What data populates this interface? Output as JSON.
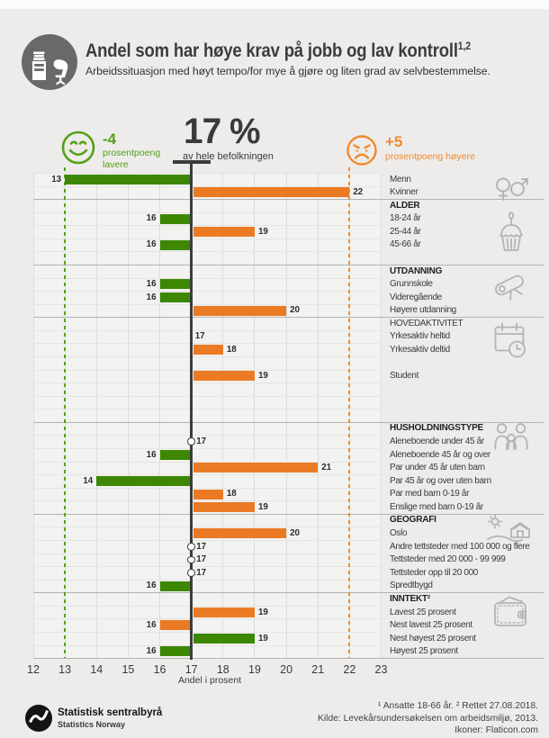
{
  "header": {
    "title": "Andel som har høye krav på jobb og lav kontroll",
    "title_sup": "1,2",
    "subtitle": "Arbeidssituasjon med høyt tempo/for mye å gjøre og liten grad av selvbestemmelse.",
    "icon": "worker-at-desk-icon"
  },
  "summary": {
    "lower": {
      "icon": "happy-face-icon",
      "delta": "-4",
      "line1": "prosentpoeng",
      "line2": "lavere",
      "value": 13
    },
    "center": {
      "value": "17 %",
      "caption": "av hele befolkningen"
    },
    "higher": {
      "icon": "sad-face-icon",
      "delta": "+5",
      "line1": "prosentpoeng høyere",
      "value": 22
    }
  },
  "colors": {
    "green": "#3d8705",
    "orange": "#ea7a23",
    "green_accent": "#55a017",
    "orange_accent": "#ef8b2e",
    "baseline": "#3c3c3c",
    "icon_gray": "#b4b4b2",
    "header_circle": "#696969"
  },
  "section_icons": [
    "gender-icon",
    "birthday-cake-icon",
    "diploma-icon",
    "calendar-clock-icon",
    "family-icon",
    "countryside-icon",
    "wallet-icon"
  ],
  "chart_data": {
    "type": "bar",
    "orientation": "horizontal-diverging",
    "title": "Andel som har høye krav på jobb og lav kontroll",
    "baseline": 17,
    "xlim": [
      12,
      23
    ],
    "x_ticks": [
      "12",
      "13",
      "14",
      "15",
      "16",
      "17",
      "18",
      "19",
      "20",
      "21",
      "22",
      "23"
    ],
    "xlabel": "Andel i prosent",
    "grid": true,
    "reference_lines": [
      {
        "value": 13,
        "style": "dashed",
        "color_key": "green"
      },
      {
        "value": 22,
        "style": "dashed",
        "color_key": "orange"
      },
      {
        "value": 17,
        "style": "solid",
        "color_key": "baseline"
      }
    ],
    "rows": [
      {
        "kind": "bar",
        "label": "Menn",
        "value": 13,
        "color": "green"
      },
      {
        "kind": "bar",
        "label": "Kvinner",
        "value": 22,
        "color": "orange"
      },
      {
        "kind": "header",
        "label": "ALDER",
        "bold": true,
        "divider": true,
        "icon": "birthday-cake-icon"
      },
      {
        "kind": "bar",
        "label": "18-24 år",
        "value": 16,
        "color": "green"
      },
      {
        "kind": "bar",
        "label": "25-44 år",
        "value": 19,
        "color": "orange"
      },
      {
        "kind": "bar",
        "label": "45-66 år",
        "value": 16,
        "color": "green"
      },
      {
        "kind": "spacer"
      },
      {
        "kind": "header",
        "label": "UTDANNING",
        "bold": true,
        "divider": true,
        "icon": "diploma-icon"
      },
      {
        "kind": "bar",
        "label": "Grunnskole",
        "value": 16,
        "color": "green"
      },
      {
        "kind": "bar",
        "label": "Videregående",
        "value": 16,
        "color": "green"
      },
      {
        "kind": "bar",
        "label": "Høyere utdanning",
        "value": 20,
        "color": "orange"
      },
      {
        "kind": "header",
        "label": "HOVEDAKTIVITET",
        "bold": false,
        "divider": true,
        "icon": "calendar-clock-icon"
      },
      {
        "kind": "value-only",
        "label": "Yrkesaktiv heltid",
        "value": 17
      },
      {
        "kind": "bar",
        "label": "Yrkesaktiv deltid",
        "value": 18,
        "color": "orange"
      },
      {
        "kind": "spacer"
      },
      {
        "kind": "bar",
        "label": "Student",
        "value": 19,
        "color": "orange"
      },
      {
        "kind": "spacer"
      },
      {
        "kind": "spacer"
      },
      {
        "kind": "spacer"
      },
      {
        "kind": "header",
        "label": "HUSHOLDNINGSTYPE",
        "bold": true,
        "divider": true,
        "icon": "family-icon"
      },
      {
        "kind": "dot",
        "label": "Aleneboende under 45 år",
        "value": 17
      },
      {
        "kind": "bar",
        "label": "Aleneboende 45 år og over",
        "value": 16,
        "color": "green"
      },
      {
        "kind": "bar",
        "label": "Par under 45 år uten barn",
        "value": 21,
        "color": "orange"
      },
      {
        "kind": "bar",
        "label": "Par 45 år og over uten barn",
        "value": 14,
        "color": "green"
      },
      {
        "kind": "bar",
        "label": "Par med barn 0-19 år",
        "value": 18,
        "color": "orange"
      },
      {
        "kind": "bar",
        "label": "Enslige med barn 0-19 år",
        "value": 19,
        "color": "orange"
      },
      {
        "kind": "header",
        "label": "GEOGRAFI",
        "bold": true,
        "divider": true,
        "icon": "countryside-icon"
      },
      {
        "kind": "bar",
        "label": "Oslo",
        "value": 20,
        "color": "orange"
      },
      {
        "kind": "dot",
        "label": "Andre tettsteder med 100 000 og flere",
        "value": 17
      },
      {
        "kind": "dot",
        "label": "Tettsteder med 20 000 - 99 999",
        "value": 17
      },
      {
        "kind": "dot",
        "label": "Tettsteder opp til 20 000",
        "value": 17
      },
      {
        "kind": "bar",
        "label": "Spredtbygd",
        "value": 16,
        "color": "green"
      },
      {
        "kind": "header",
        "label": "INNTEKT²",
        "bold": true,
        "divider": true,
        "icon": "wallet-icon"
      },
      {
        "kind": "bar",
        "label": "Lavest 25 prosent",
        "value": 19,
        "color": "orange"
      },
      {
        "kind": "bar",
        "label": "Nest lavest 25 prosent",
        "value": 16,
        "color": "orange"
      },
      {
        "kind": "bar",
        "label": "Nest høyest 25 prosent",
        "value": 19,
        "color": "green"
      },
      {
        "kind": "bar",
        "label": "Høyest 25 prosent",
        "value": 16,
        "color": "green"
      }
    ]
  },
  "footer": {
    "logo_line1": "Statistisk sentralbyrå",
    "logo_line2": "Statistics Norway",
    "note1": "¹ Ansatte 18-66 år. ² Rettet 27.08.2018.",
    "note2": "Kilde: Levekårsundersøkelsen om arbeidsmiljø, 2013.",
    "note3": "Ikoner: Flaticon.com"
  }
}
